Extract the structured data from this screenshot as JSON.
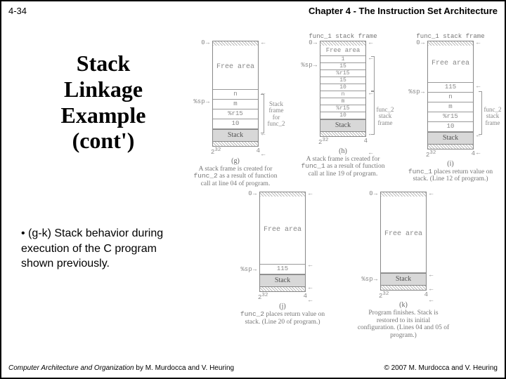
{
  "header": {
    "page": "4-34",
    "chapter": "Chapter 4 - The Instruction Set Architecture"
  },
  "title": "Stack\nLinkage\nExample\n(cont')",
  "bullet": "(g-k) Stack behavior during execution of the C program shown previously.",
  "footer": {
    "book": "Computer Architecture and Organization",
    "authors": "by M. Murdocca and V. Heuring",
    "copyright": "© 2007 M. Murdocca and V. Heuring"
  },
  "axis": {
    "top_left": "0",
    "bot_left_big": "2",
    "bot_left_exp": "32",
    "bot_right": "4"
  },
  "labels": {
    "sp": "%sp",
    "free": "Free area",
    "stack": "Stack",
    "func1_frame": "func_1\nstack frame",
    "func2_frame": "func_2\nstack frame",
    "frame_for_func2": "Stack\nframe for\nfunc_2"
  },
  "panels": {
    "g": {
      "rows": [
        "n",
        "m",
        "%r15",
        "10"
      ],
      "id": "(g)",
      "caption_pre": "A stack frame is created for ",
      "caption_mono": "func_2",
      "caption_post": " as a result of function call at line 04 of program."
    },
    "h": {
      "rows": [
        "1",
        "15",
        "%r15",
        "15",
        "10",
        "n",
        "m",
        "%r15",
        "10"
      ],
      "id": "(h)",
      "caption_pre": "A stack frame is created for ",
      "caption_mono": "func_1",
      "caption_post": " as a result of function call at line 19 of program."
    },
    "i": {
      "rows": [
        "115",
        "n",
        "m",
        "%r15",
        "10"
      ],
      "id": "(i)",
      "caption_mono": "func_1",
      "caption_post": " places return value on stack. (Line 12 of program.)"
    },
    "j": {
      "rows": [
        "115"
      ],
      "id": "(j)",
      "caption_mono": "func_2",
      "caption_post": " places return value on stack. (Line 20 of program.)"
    },
    "k": {
      "rows": [],
      "id": "(k)",
      "caption": "Program finishes. Stack is restored to its initial configuration. (Lines 04 and 05 of program.)"
    }
  }
}
